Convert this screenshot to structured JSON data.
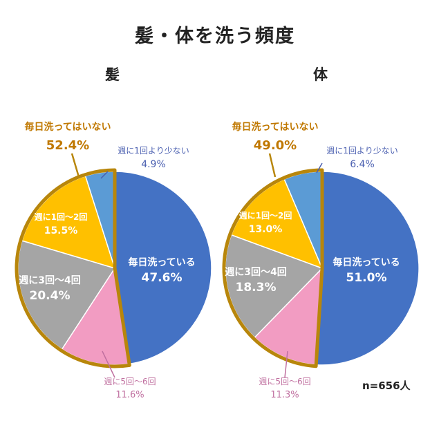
{
  "title": "髪・体を洗う頻度",
  "note": "n=656人",
  "colors": {
    "daily": "#4472c4",
    "lt1": "#5b9bd5",
    "w1to2": "#ffc000",
    "w3to4": "#a5a5a5",
    "w5to6": "#f29cc2",
    "group_outline": "#b8860b",
    "group_label": "#c07800"
  },
  "chart_data": [
    {
      "type": "pie",
      "title": "髪",
      "group_label": "毎日洗ってはいない",
      "group_value": "52.4%",
      "slices": [
        {
          "key": "daily",
          "label": "毎日洗っている",
          "value": 47.6,
          "display": "47.6%"
        },
        {
          "key": "w5to6",
          "label": "週に5回〜6回",
          "value": 11.6,
          "display": "11.6%"
        },
        {
          "key": "w3to4",
          "label": "週に3回〜4回",
          "value": 20.4,
          "display": "20.4%"
        },
        {
          "key": "w1to2",
          "label": "週に1回〜2回",
          "value": 15.5,
          "display": "15.5%"
        },
        {
          "key": "lt1",
          "label": "週に1回より少ない",
          "value": 4.9,
          "display": "4.9%"
        }
      ]
    },
    {
      "type": "pie",
      "title": "体",
      "group_label": "毎日洗ってはいない",
      "group_value": "49.0%",
      "slices": [
        {
          "key": "daily",
          "label": "毎日洗っている",
          "value": 51.0,
          "display": "51.0%"
        },
        {
          "key": "w5to6",
          "label": "週に5回〜6回",
          "value": 11.3,
          "display": "11.3%"
        },
        {
          "key": "w3to4",
          "label": "週に3回〜4回",
          "value": 18.3,
          "display": "18.3%"
        },
        {
          "key": "w1to2",
          "label": "週に1回〜2回",
          "value": 13.0,
          "display": "13.0%"
        },
        {
          "key": "lt1",
          "label": "週に1回より少ない",
          "value": 6.4,
          "display": "6.4%"
        }
      ]
    }
  ]
}
